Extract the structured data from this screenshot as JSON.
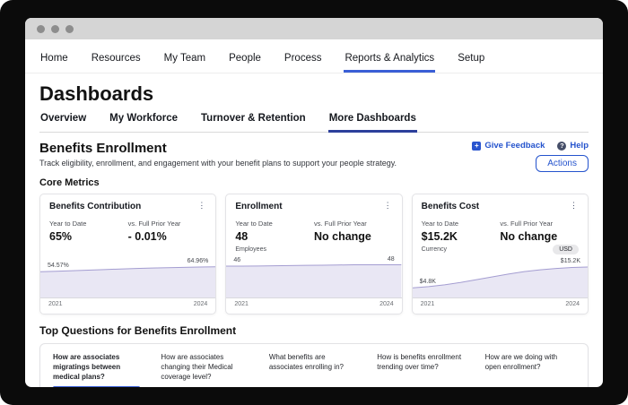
{
  "nav": {
    "items": [
      {
        "label": "Home",
        "active": false
      },
      {
        "label": "Resources",
        "active": false
      },
      {
        "label": "My Team",
        "active": false
      },
      {
        "label": "People",
        "active": false
      },
      {
        "label": "Process",
        "active": false
      },
      {
        "label": "Reports & Analytics",
        "active": true
      },
      {
        "label": "Setup",
        "active": false
      }
    ]
  },
  "page": {
    "title": "Dashboards"
  },
  "dash_tabs": [
    {
      "label": "Overview",
      "active": false
    },
    {
      "label": "My Workforce",
      "active": false
    },
    {
      "label": "Turnover & Retention",
      "active": false
    },
    {
      "label": "More Dashboards",
      "active": true
    }
  ],
  "section": {
    "title": "Benefits Enrollment",
    "subtitle": "Track eligibility, enrollment, and engagement with your benefit plans to support your people strategy.",
    "give_feedback_label": "Give Feedback",
    "help_label": "Help",
    "actions_label": "Actions",
    "core_metrics_label": "Core Metrics"
  },
  "icons": {
    "feedback_glyph": "+",
    "help_glyph": "?",
    "kebab_glyph": "⋮"
  },
  "cards": [
    {
      "title": "Benefits Contribution",
      "ytd_label": "Year to Date",
      "ytd_value": "65%",
      "prior_label": "vs. Full Prior Year",
      "prior_value": "- 0.01%",
      "chart": {
        "type": "area",
        "start_label": "54.57%",
        "end_label": "64.96%",
        "x_start": "2021",
        "x_end": "2024",
        "values": [
          54.57,
          55.5,
          56.6,
          57.8,
          59.0,
          60.2,
          61.3,
          62.3,
          63.1,
          63.8,
          64.4,
          64.96
        ],
        "ylim": [
          0,
          72
        ]
      }
    },
    {
      "title": "Enrollment",
      "ytd_label": "Year to Date",
      "ytd_value": "48",
      "unit_label": "Employees",
      "prior_label": "vs. Full Prior Year",
      "prior_value": "No change",
      "chart": {
        "type": "area",
        "start_label": "46",
        "end_label": "48",
        "x_start": "2021",
        "x_end": "2024",
        "values": [
          46,
          46,
          46.2,
          46.5,
          46.9,
          47.2,
          47.4,
          47.7,
          48,
          48,
          48,
          48
        ],
        "ylim": [
          0,
          50
        ]
      }
    },
    {
      "title": "Benefits Cost",
      "ytd_label": "Year to Date",
      "ytd_value": "$15.2K",
      "unit_label": "Currency",
      "badge": "USD",
      "prior_label": "vs. Full Prior Year",
      "prior_value": "No change",
      "chart": {
        "type": "area",
        "start_label": "$4.8K",
        "end_label": "$15.2K",
        "x_start": "2021",
        "x_end": "2024",
        "values": [
          4.8,
          5.4,
          6.3,
          7.5,
          8.9,
          10.3,
          11.7,
          12.9,
          13.8,
          14.5,
          15.0,
          15.2
        ],
        "ylim": [
          0,
          17
        ]
      }
    }
  ],
  "questions": {
    "title": "Top Questions for Benefits Enrollment",
    "items": [
      {
        "label": "How are associates migratings between medical plans?",
        "active": true
      },
      {
        "label": "How are associates changing their Medical coverage level?",
        "active": false
      },
      {
        "label": "What benefits are associates enrolling in?",
        "active": false
      },
      {
        "label": "How is benefits enrollment trending over time?",
        "active": false
      },
      {
        "label": "How are we doing with open enrollment?",
        "active": false
      }
    ]
  },
  "colors": {
    "accent_blue": "#3a5fd6",
    "tab_navy": "#2c3f9b",
    "link_blue": "#2453cd",
    "chart_fill": "#e9e7f4",
    "chart_line": "#a49dd1"
  }
}
